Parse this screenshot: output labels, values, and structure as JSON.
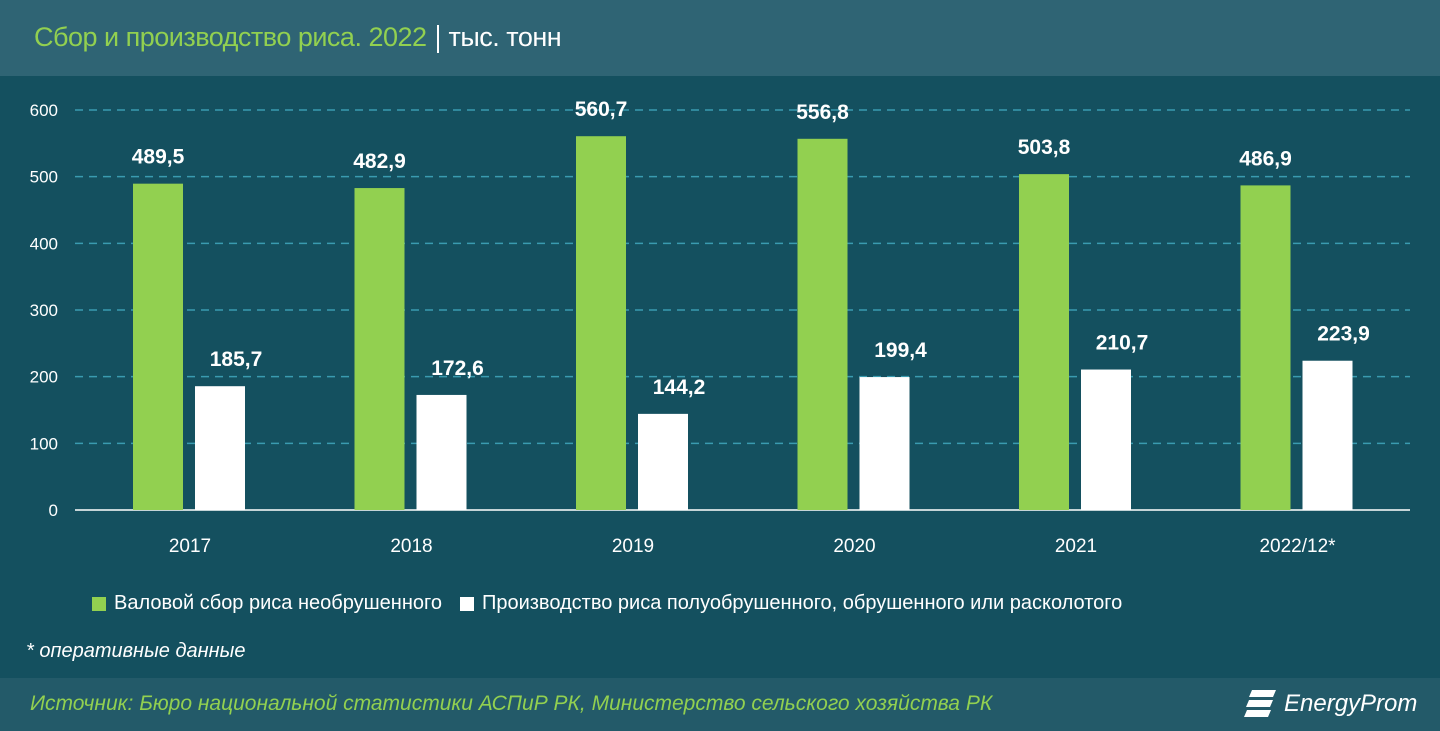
{
  "header": {
    "title": "Сбор и производство риса. 2022",
    "unit": "тыс. тонн"
  },
  "chart_data": {
    "type": "bar",
    "categories": [
      "2017",
      "2018",
      "2019",
      "2020",
      "2021",
      "2022/12*"
    ],
    "series": [
      {
        "name": "Валовой сбор риса необрушенного",
        "color": "#92d050",
        "values": [
          489.5,
          482.9,
          560.7,
          556.8,
          503.8,
          486.9
        ],
        "labels": [
          "489,5",
          "482,9",
          "560,7",
          "556,8",
          "503,8",
          "486,9"
        ]
      },
      {
        "name": "Производство риса полуобрушенного, обрушенного или расколотого",
        "color": "#ffffff",
        "values": [
          185.7,
          172.6,
          144.2,
          199.4,
          210.7,
          223.9
        ],
        "labels": [
          "185,7",
          "172,6",
          "144,2",
          "199,4",
          "210,7",
          "223,9"
        ]
      }
    ],
    "ylim": [
      0,
      600
    ],
    "yticks": [
      "0",
      "100",
      "200",
      "300",
      "400",
      "500",
      "600"
    ],
    "grid": true,
    "legend": "bottom"
  },
  "note": "* оперативные данные",
  "footer": {
    "source": "Источник: Бюро национальной статистики АСПиР РК, Министерство сельского хозяйства РК",
    "logo": "EnergyProm"
  }
}
